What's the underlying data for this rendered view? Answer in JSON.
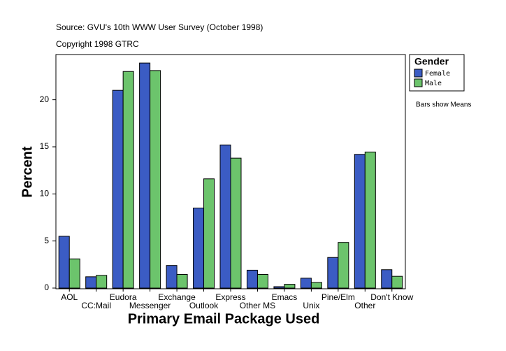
{
  "chart_data": {
    "type": "bar",
    "title": "Source: GVU's 10th WWW User Survey (October 1998)",
    "subtitle": "Copyright 1998 GTRC",
    "x_label": "Primary Email Package Used",
    "y_label": "Percent",
    "legend_title": "Gender",
    "annotation": "Bars show Means",
    "categories": [
      "AOL",
      "CC:Mail",
      "Eudora",
      "Messenger",
      "Exchange",
      "Outlook",
      "Express",
      "Other MS",
      "Emacs",
      "Unix",
      "Pine/Elm",
      "Other",
      "Don't Know"
    ],
    "series": [
      {
        "name": "Female",
        "color": "#3b5cc4",
        "values": [
          5.5,
          1.2,
          21.0,
          23.9,
          2.4,
          8.5,
          15.2,
          1.9,
          0.15,
          1.05,
          3.25,
          14.2,
          1.95
        ]
      },
      {
        "name": "Male",
        "color": "#6cc46c",
        "values": [
          3.1,
          1.35,
          23.0,
          23.1,
          1.45,
          11.6,
          13.8,
          1.45,
          0.4,
          0.6,
          4.85,
          14.45,
          1.25
        ]
      }
    ],
    "ylim": [
      0,
      24.8
    ],
    "yticks": [
      0,
      5,
      10,
      15,
      20
    ],
    "grid": false,
    "legend": "right"
  }
}
